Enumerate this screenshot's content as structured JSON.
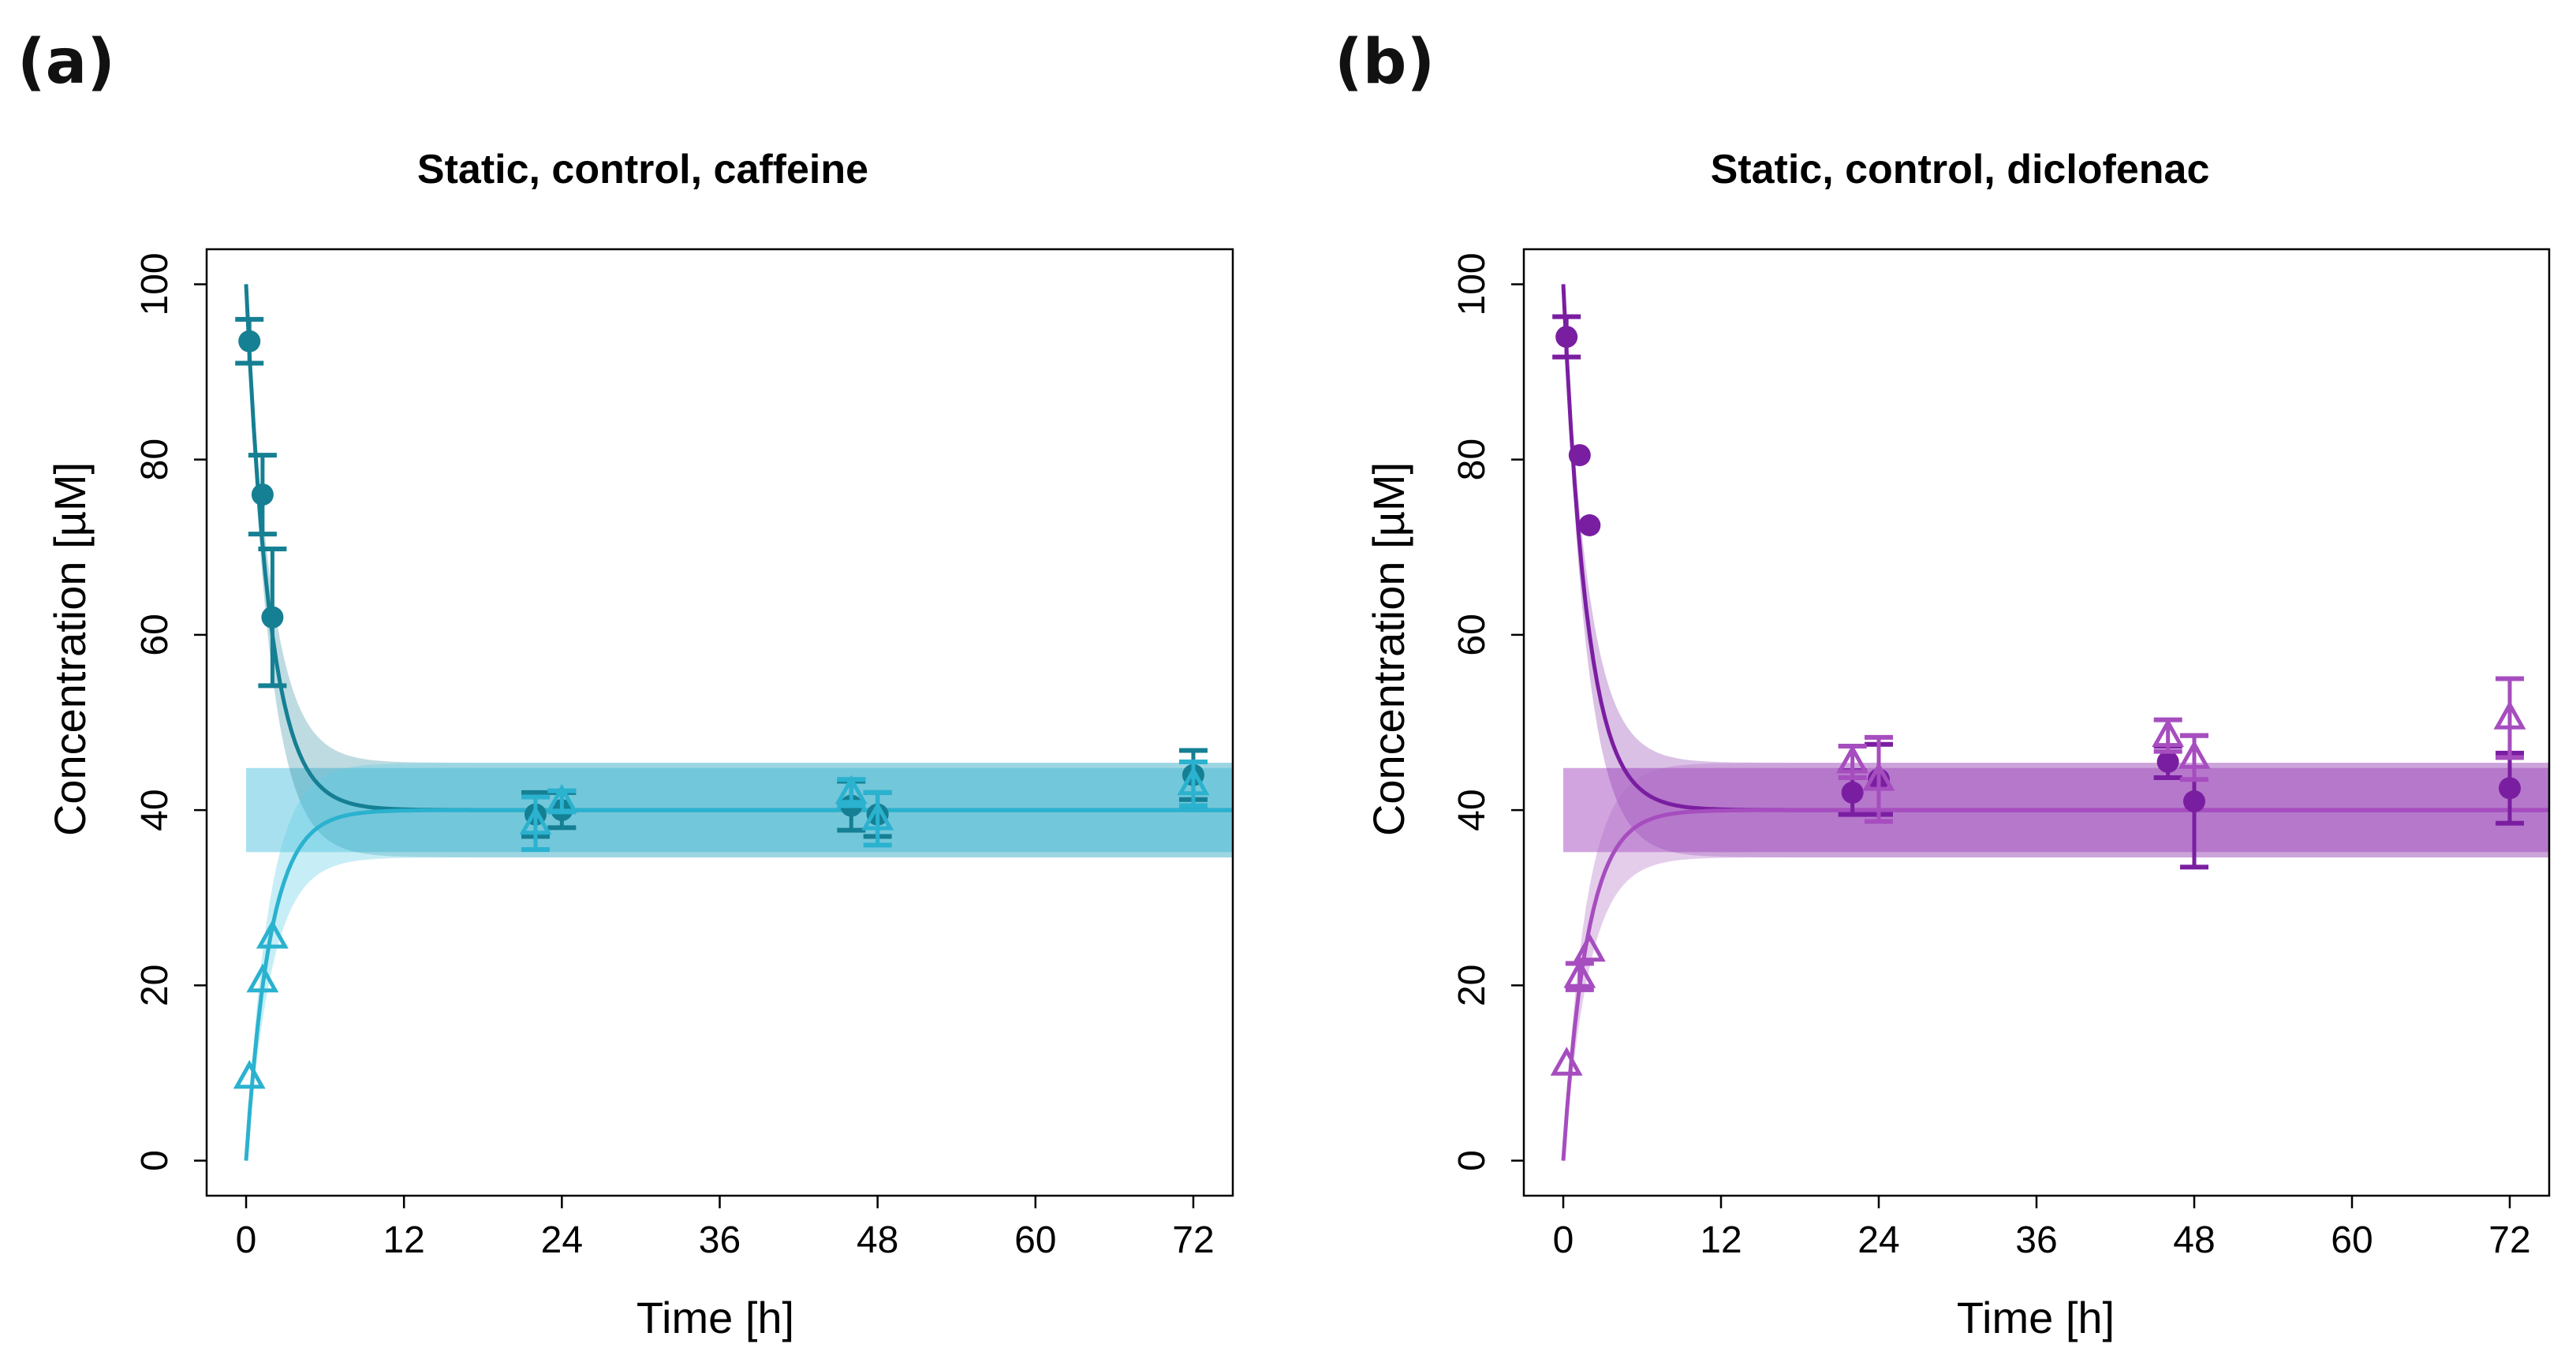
{
  "figure": {
    "panels": [
      {
        "letter": "(a)"
      },
      {
        "letter": "(b)"
      }
    ]
  },
  "chart_data": [
    {
      "type": "line",
      "title": "Static, control, caffeine",
      "xlabel": "Time [h]",
      "ylabel": "Concentration [µM]",
      "xlim": [
        -3,
        75
      ],
      "ylim": [
        -4,
        104
      ],
      "xticks": [
        0,
        12,
        24,
        36,
        48,
        60,
        72
      ],
      "yticks": [
        0,
        20,
        40,
        60,
        80,
        100
      ],
      "colors": {
        "curve1": "#157f93",
        "curve2": "#2ab2cf",
        "band1": "#157f93",
        "band2": "#5fcde6",
        "band": "#a3deee"
      },
      "model": {
        "c0": 100,
        "equilibrium": 40,
        "half_band": 4.8,
        "rate_per_h": 0.55
      },
      "series": [
        {
          "marker": "circle",
          "x": [
            0.25,
            1.25,
            2.0,
            22.0,
            24.0,
            46.0,
            48.0,
            72.0
          ],
          "y": [
            93.5,
            76.0,
            62.0,
            39.5,
            40.0,
            40.5,
            39.5,
            44.0
          ],
          "err": [
            2.5,
            4.5,
            7.8,
            2.5,
            2.0,
            2.8,
            2.5,
            2.8
          ]
        },
        {
          "marker": "triangle",
          "x": [
            0.25,
            1.25,
            2.0,
            22.0,
            24.0,
            46.0,
            48.0,
            72.0
          ],
          "y": [
            9.5,
            20.5,
            25.5,
            38.5,
            41.0,
            42.0,
            39.0,
            43.0
          ],
          "err": [
            0,
            0,
            0,
            3.0,
            1.2,
            1.5,
            3.0,
            2.5
          ]
        }
      ]
    },
    {
      "type": "line",
      "title": "Static, control, diclofenac",
      "xlabel": "Time [h]",
      "ylabel": "Concentration [µM]",
      "xlim": [
        -3,
        75
      ],
      "ylim": [
        -4,
        104
      ],
      "xticks": [
        0,
        12,
        24,
        36,
        48,
        60,
        72
      ],
      "yticks": [
        0,
        20,
        40,
        60,
        80,
        100
      ],
      "colors": {
        "curve1": "#7a1ea1",
        "curve2": "#a64dbf",
        "band1": "#7a1ea1",
        "band2": "#b36cc6",
        "band": "#cf9fdd"
      },
      "model": {
        "c0": 100,
        "equilibrium": 40,
        "half_band": 4.8,
        "rate_per_h": 0.55
      },
      "series": [
        {
          "marker": "circle",
          "x": [
            0.25,
            1.25,
            2.0,
            22.0,
            24.0,
            46.0,
            48.0,
            72.0
          ],
          "y": [
            94.0,
            80.5,
            72.5,
            42.0,
            43.5,
            45.5,
            41.0,
            42.5
          ],
          "err": [
            2.3,
            0,
            0,
            2.5,
            4.0,
            1.8,
            7.5,
            4.0
          ]
        },
        {
          "marker": "triangle",
          "x": [
            0.25,
            1.25,
            2.0,
            22.0,
            24.0,
            46.0,
            48.0,
            72.0
          ],
          "y": [
            11.0,
            21.0,
            24.0,
            45.5,
            43.5,
            48.5,
            46.0,
            50.5
          ],
          "err": [
            0,
            1.5,
            0,
            1.8,
            4.8,
            1.8,
            2.5,
            4.5
          ]
        }
      ]
    }
  ]
}
